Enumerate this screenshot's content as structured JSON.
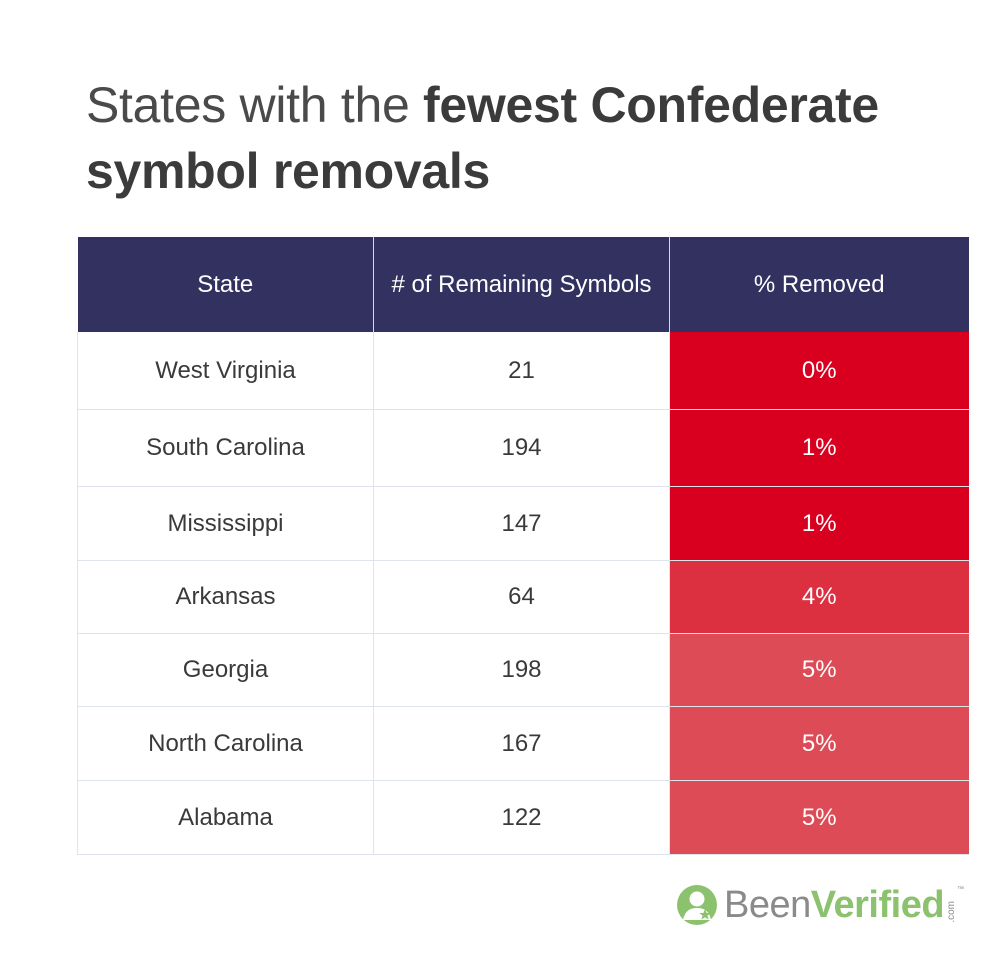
{
  "title": {
    "light": "States with the ",
    "bold": "fewest Confederate symbol removals"
  },
  "table": {
    "headers": [
      "State",
      "# of Remaining Symbols",
      "% Removed"
    ],
    "rows": [
      {
        "state": "West Virginia",
        "remaining": "21",
        "removed": "0%",
        "color": "#d8001e"
      },
      {
        "state": "South Carolina",
        "remaining": "194",
        "removed": "1%",
        "color": "#d8001e"
      },
      {
        "state": "Mississippi",
        "remaining": "147",
        "removed": "1%",
        "color": "#d8001e"
      },
      {
        "state": "Arkansas",
        "remaining": "64",
        "removed": "4%",
        "color": "#dc2f3f"
      },
      {
        "state": "Georgia",
        "remaining": "198",
        "removed": "5%",
        "color": "#dd4b57"
      },
      {
        "state": "North Carolina",
        "remaining": "167",
        "removed": "5%",
        "color": "#dd4b57"
      },
      {
        "state": "Alabama",
        "remaining": "122",
        "removed": "5%",
        "color": "#dd4b57"
      }
    ]
  },
  "chart_data": {
    "type": "table",
    "title": "States with the fewest Confederate symbol removals",
    "columns": [
      "State",
      "# of Remaining Symbols",
      "% Removed"
    ],
    "rows": [
      [
        "West Virginia",
        21,
        0
      ],
      [
        "South Carolina",
        194,
        1
      ],
      [
        "Mississippi",
        147,
        1
      ],
      [
        "Arkansas",
        64,
        4
      ],
      [
        "Georgia",
        198,
        5
      ],
      [
        "North Carolina",
        167,
        5
      ],
      [
        "Alabama",
        122,
        5
      ]
    ]
  },
  "logo": {
    "been": "Been",
    "verified": "Verified",
    "com": ".com",
    "tm": "™",
    "icon": "person-star-icon",
    "color_green": "#8cc26e",
    "color_gray": "#8a8a8a"
  },
  "colors": {
    "header_bg": "#333160",
    "accent_red": "#d8001e"
  }
}
